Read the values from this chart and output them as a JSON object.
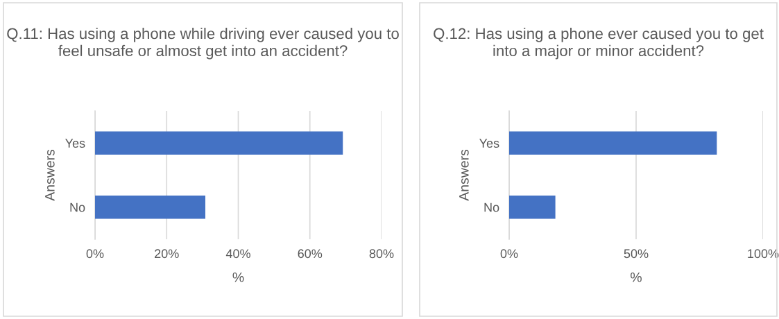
{
  "chart_data": [
    {
      "type": "bar",
      "orientation": "horizontal",
      "title": "Q.11: Has using a phone while driving ever caused you to feel unsafe or almost get into an accident?",
      "xlabel": "%",
      "ylabel": "Answers",
      "categories": [
        "Yes",
        "No"
      ],
      "values": [
        69.2,
        30.8
      ],
      "color": "#4472c4",
      "xlim": [
        0,
        80
      ],
      "xticks": [
        {
          "value": 0,
          "label": "0%"
        },
        {
          "value": 20,
          "label": "20%"
        },
        {
          "value": 40,
          "label": "40%"
        },
        {
          "value": 60,
          "label": "60%"
        },
        {
          "value": 80,
          "label": "80%"
        }
      ],
      "grid": "x",
      "legend": false
    },
    {
      "type": "bar",
      "orientation": "horizontal",
      "title": "Q.12: Has using a phone ever caused you to get into a major or minor accident?",
      "xlabel": "%",
      "ylabel": "Answers",
      "categories": [
        "Yes",
        "No"
      ],
      "values": [
        81.8,
        18.2
      ],
      "color": "#4472c4",
      "xlim": [
        0,
        100
      ],
      "xticks": [
        {
          "value": 0,
          "label": "0%"
        },
        {
          "value": 50,
          "label": "50%"
        },
        {
          "value": 100,
          "label": "100%"
        }
      ],
      "grid": "x",
      "legend": false
    }
  ]
}
